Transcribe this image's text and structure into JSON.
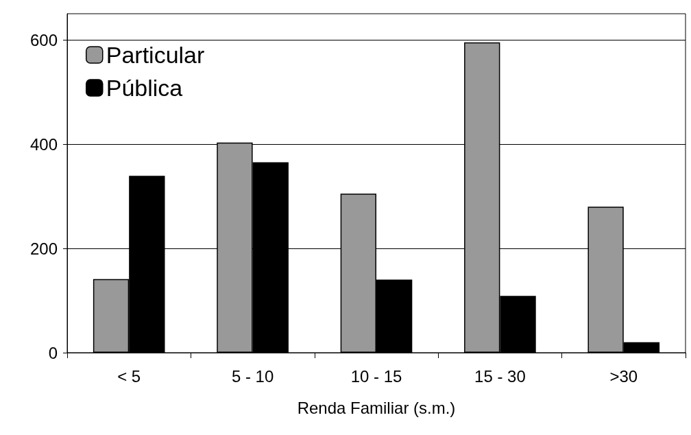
{
  "chart_data": {
    "type": "bar",
    "xlabel": "Renda Familiar (s.m.)",
    "categories": [
      "< 5",
      "5 - 10",
      "10 - 15",
      "15 - 30",
      ">30"
    ],
    "series": [
      {
        "name": "Particular",
        "color": "#999999",
        "values": [
          141,
          403,
          305,
          595,
          280
        ]
      },
      {
        "name": "Pública",
        "color": "#000000",
        "values": [
          339,
          365,
          140,
          109,
          20
        ]
      }
    ],
    "ylim": [
      0,
      650
    ],
    "yticks": [
      0,
      200,
      400,
      600
    ],
    "grid": "y",
    "legend": "top left"
  }
}
